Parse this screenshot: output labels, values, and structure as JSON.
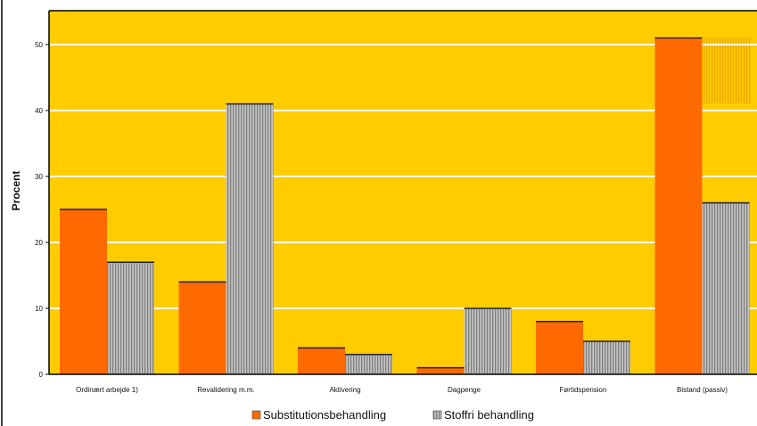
{
  "chart_data": {
    "type": "bar",
    "ylabel": "Procent",
    "xlabel": "",
    "ylim": [
      0,
      55
    ],
    "yticks": [
      0,
      10,
      20,
      30,
      40,
      50
    ],
    "grid": true,
    "legend_position": "bottom-center",
    "categories": [
      "Ordinært arbejde 1)",
      "Revalidering m.m.",
      "Aktivering",
      "Dagpenge",
      "Førtidspension",
      "Bistand (passiv)"
    ],
    "series": [
      {
        "name": "Substitutionsbehandling",
        "color": "#ff6a00",
        "values": [
          25,
          14,
          4,
          1,
          8,
          51
        ]
      },
      {
        "name": "Stoffri behandling",
        "color": "#a8a8a8",
        "values": [
          17,
          41,
          3,
          10,
          5,
          26
        ]
      }
    ],
    "colors": {
      "plot_background": "#ffcc00",
      "gridline": "#ffffff"
    }
  }
}
